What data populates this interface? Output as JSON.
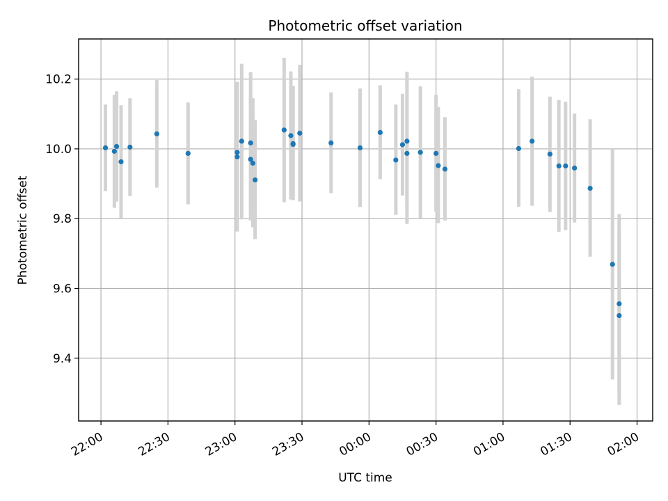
{
  "chart_data": {
    "type": "scatter",
    "title": "Photometric offset variation",
    "xlabel": "UTC time",
    "ylabel": "Photometric offset",
    "x_unit": "UTC",
    "x_range": [
      "21:50",
      "02:07"
    ],
    "ylim": [
      9.22,
      10.315
    ],
    "grid": true,
    "x_ticks": [
      "22:00",
      "22:30",
      "23:00",
      "23:30",
      "00:00",
      "00:30",
      "01:00",
      "01:30",
      "02:00"
    ],
    "y_ticks": [
      9.4,
      9.6,
      9.8,
      10.0,
      10.2
    ],
    "y_tick_labels": [
      "9.4",
      "9.6",
      "9.8",
      "10.0",
      "10.2"
    ],
    "colors": {
      "point": "#1f77b4",
      "errorbar": "#d3d3d3",
      "grid": "#b0b0b0"
    },
    "series": [
      {
        "points": [
          {
            "t": "22:02",
            "y": 10.003,
            "lo": 9.879,
            "hi": 10.127
          },
          {
            "t": "22:06",
            "y": 9.993,
            "lo": 9.831,
            "hi": 10.155
          },
          {
            "t": "22:07",
            "y": 10.007,
            "lo": 9.849,
            "hi": 10.165
          },
          {
            "t": "22:09",
            "y": 9.963,
            "lo": 9.801,
            "hi": 10.125
          },
          {
            "t": "22:13",
            "y": 10.005,
            "lo": 9.865,
            "hi": 10.145
          },
          {
            "t": "22:25",
            "y": 10.043,
            "lo": 9.889,
            "hi": 10.197
          },
          {
            "t": "22:39",
            "y": 9.987,
            "lo": 9.841,
            "hi": 10.133
          },
          {
            "t": "23:01",
            "y": 9.99,
            "lo": 9.798,
            "hi": 10.192
          },
          {
            "t": "23:01",
            "y": 9.977,
            "lo": 9.763,
            "hi": 10.191
          },
          {
            "t": "23:03",
            "y": 10.022,
            "lo": 9.798,
            "hi": 10.244
          },
          {
            "t": "23:07",
            "y": 9.97,
            "lo": 9.795,
            "hi": 10.15
          },
          {
            "t": "23:07",
            "y": 10.017,
            "lo": 9.815,
            "hi": 10.22
          },
          {
            "t": "23:08",
            "y": 9.959,
            "lo": 9.775,
            "hi": 10.145
          },
          {
            "t": "23:09",
            "y": 9.911,
            "lo": 9.741,
            "hi": 10.083
          },
          {
            "t": "23:22",
            "y": 10.054,
            "lo": 9.847,
            "hi": 10.261
          },
          {
            "t": "23:25",
            "y": 10.038,
            "lo": 9.855,
            "hi": 10.222
          },
          {
            "t": "23:26",
            "y": 10.015,
            "lo": 9.853,
            "hi": 10.18
          },
          {
            "t": "23:26",
            "y": 10.013,
            "lo": 9.853,
            "hi": 10.18
          },
          {
            "t": "23:29",
            "y": 10.045,
            "lo": 9.849,
            "hi": 10.241
          },
          {
            "t": "23:43",
            "y": 10.017,
            "lo": 9.873,
            "hi": 10.162
          },
          {
            "t": "23:56",
            "y": 10.003,
            "lo": 9.833,
            "hi": 10.173
          },
          {
            "t": "00:05",
            "y": 10.047,
            "lo": 9.913,
            "hi": 10.182
          },
          {
            "t": "00:12",
            "y": 9.968,
            "lo": 9.811,
            "hi": 10.127
          },
          {
            "t": "00:15",
            "y": 10.012,
            "lo": 9.866,
            "hi": 10.158
          },
          {
            "t": "00:17",
            "y": 10.022,
            "lo": 9.823,
            "hi": 10.221
          },
          {
            "t": "00:17",
            "y": 9.987,
            "lo": 9.785,
            "hi": 10.19
          },
          {
            "t": "00:23",
            "y": 9.99,
            "lo": 9.801,
            "hi": 10.179
          },
          {
            "t": "00:30",
            "y": 9.987,
            "lo": 9.82,
            "hi": 10.155
          },
          {
            "t": "00:31",
            "y": 9.952,
            "lo": 9.787,
            "hi": 10.12
          },
          {
            "t": "00:34",
            "y": 9.942,
            "lo": 9.795,
            "hi": 10.091
          },
          {
            "t": "01:07",
            "y": 10.001,
            "lo": 9.834,
            "hi": 10.171
          },
          {
            "t": "01:13",
            "y": 10.022,
            "lo": 9.837,
            "hi": 10.207
          },
          {
            "t": "01:21",
            "y": 9.985,
            "lo": 9.819,
            "hi": 10.15
          },
          {
            "t": "01:25",
            "y": 9.951,
            "lo": 9.762,
            "hi": 10.14
          },
          {
            "t": "01:28",
            "y": 9.951,
            "lo": 9.767,
            "hi": 10.135
          },
          {
            "t": "01:32",
            "y": 9.945,
            "lo": 9.789,
            "hi": 10.101
          },
          {
            "t": "01:39",
            "y": 9.887,
            "lo": 9.691,
            "hi": 10.085
          },
          {
            "t": "01:49",
            "y": 9.669,
            "lo": 9.339,
            "hi": 10.0
          },
          {
            "t": "01:52",
            "y": 9.522,
            "lo": 9.266,
            "hi": 9.779
          },
          {
            "t": "01:52",
            "y": 9.556,
            "lo": 9.299,
            "hi": 9.813
          }
        ]
      }
    ]
  }
}
